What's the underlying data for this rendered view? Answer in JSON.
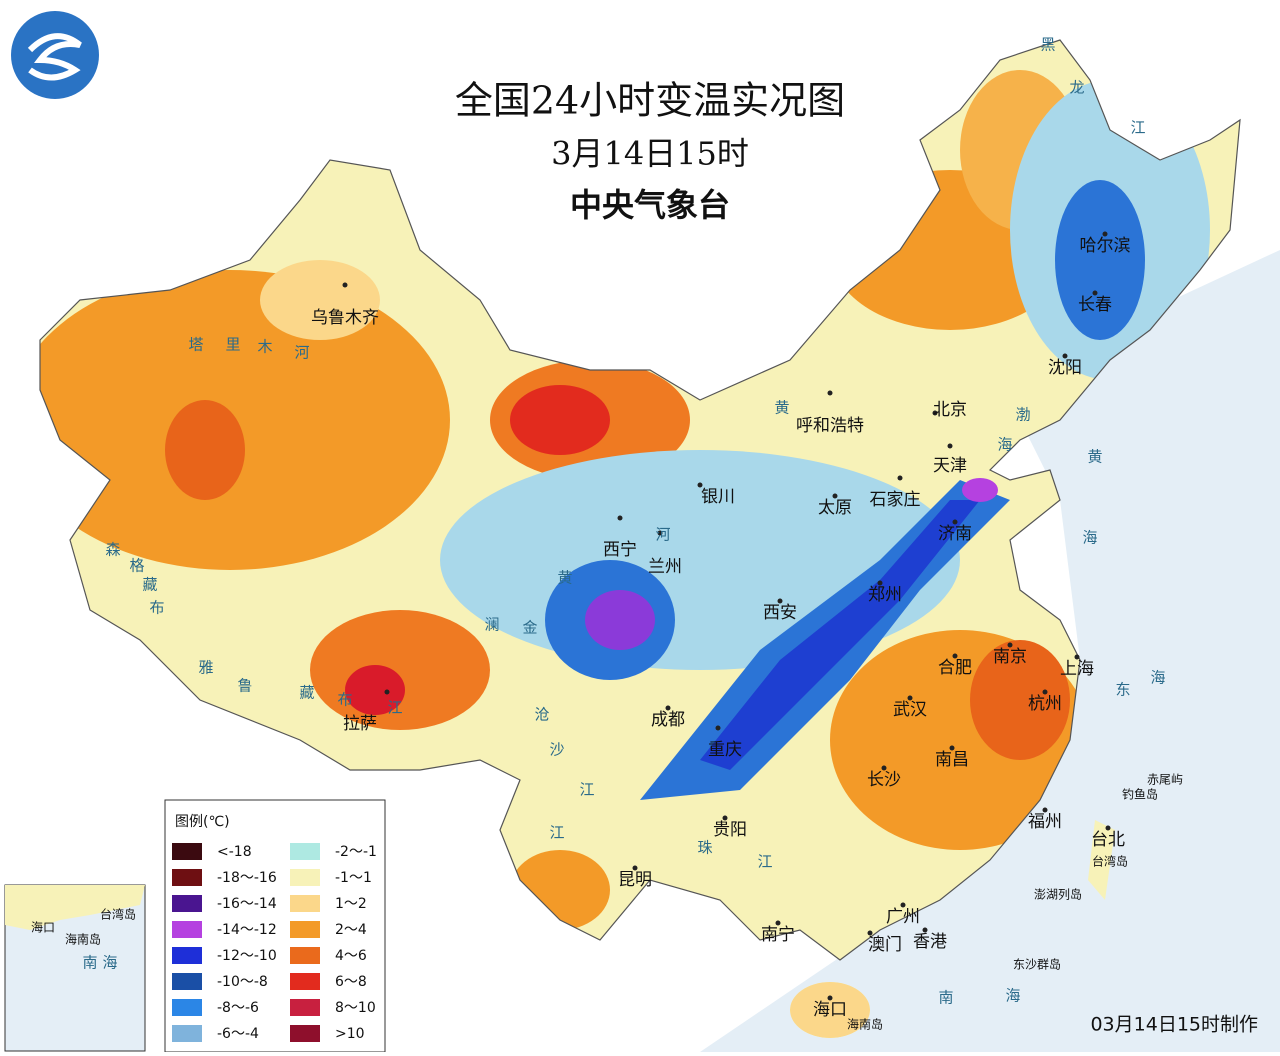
{
  "header": {
    "title": "全国24小时变温实况图",
    "time": "3月14日15时",
    "agency": "中央气象台"
  },
  "legend": {
    "title": "图例(℃)",
    "items": [
      {
        "label": "<-18",
        "color": "#3b0a10"
      },
      {
        "label": "-18～-16",
        "color": "#6e0f12"
      },
      {
        "label": "-16～-14",
        "color": "#4a1590"
      },
      {
        "label": "-14～-12",
        "color": "#b541e0"
      },
      {
        "label": "-12～-10",
        "color": "#1e2fd8"
      },
      {
        "label": "-10～-8",
        "color": "#1a4fa6"
      },
      {
        "label": "-8～-6",
        "color": "#2b86e6"
      },
      {
        "label": "-6～-4",
        "color": "#7fb3dc"
      },
      {
        "label": "-2～-1",
        "color": "#aee9e2"
      },
      {
        "label": "-1～1",
        "color": "#f7f2b8"
      },
      {
        "label": "1～2",
        "color": "#fbd78a"
      },
      {
        "label": "2～4",
        "color": "#f39a28"
      },
      {
        "label": "4～6",
        "color": "#ea6a1c"
      },
      {
        "label": "6～8",
        "color": "#e22b1e"
      },
      {
        "label": "8～10",
        "color": "#c8203f"
      },
      {
        "label": ">10",
        "color": "#8e0f2c"
      }
    ]
  },
  "cities": [
    "乌鲁木齐",
    "拉萨",
    "西宁",
    "兰州",
    "银川",
    "呼和浩特",
    "北京",
    "天津",
    "石家庄",
    "太原",
    "济南",
    "郑州",
    "西安",
    "成都",
    "重庆",
    "贵阳",
    "昆明",
    "南宁",
    "广州",
    "澳门",
    "香港",
    "海口",
    "长沙",
    "武汉",
    "南昌",
    "合肥",
    "南京",
    "上海",
    "杭州",
    "福州",
    "台北",
    "沈阳",
    "长春",
    "哈尔滨"
  ],
  "geo_labels": [
    "塔",
    "里",
    "木",
    "河",
    "森",
    "格",
    "藏",
    "布",
    "雅",
    "鲁",
    "藏",
    "布",
    "江",
    "黄",
    "河",
    "澜",
    "金",
    "沧",
    "沙",
    "江",
    "珠",
    "江",
    "江",
    "黄",
    "渤",
    "海",
    "黄",
    "海",
    "东",
    "海",
    "南",
    "海",
    "黑",
    "龙",
    "江",
    "赤尾屿",
    "钓鱼岛",
    "台湾岛",
    "澎湖列岛",
    "东沙群岛",
    "海南岛"
  ],
  "inset": [
    "台湾岛",
    "海口",
    "海南岛",
    "南",
    "海"
  ],
  "footer": "03月14日15时制作"
}
